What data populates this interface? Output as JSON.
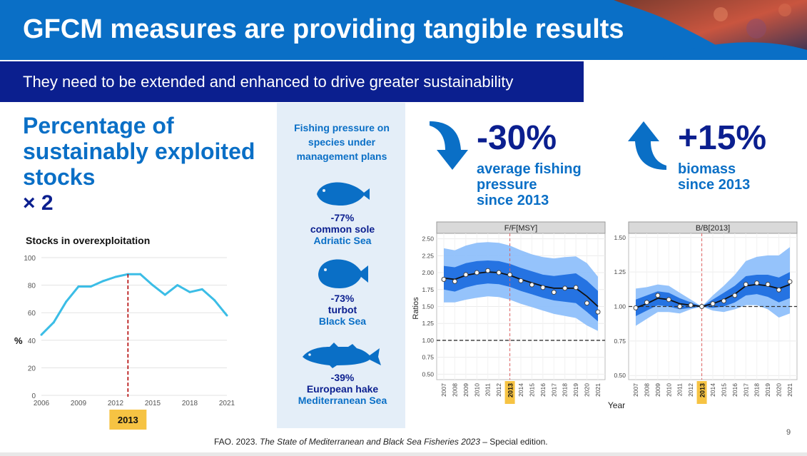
{
  "header": {
    "title": "GFCM measures are providing tangible results",
    "subtitle": "They need to be extended and enhanced to drive greater sustainability"
  },
  "left": {
    "heading": "Percentage of sustainably exploited stocks",
    "multiplier": "× 2"
  },
  "middle": {
    "heading": "Fishing pressure on species under management plans",
    "species": [
      {
        "pct": "-77%",
        "name": "common sole",
        "sea": "Adriatic Sea",
        "icon": "sole-fish-icon"
      },
      {
        "pct": "-73%",
        "name": "turbot",
        "sea": "Black Sea",
        "icon": "turbot-fish-icon"
      },
      {
        "pct": "-39%",
        "name": "European hake",
        "sea": "Mediterranean Sea",
        "icon": "hake-fish-icon"
      }
    ]
  },
  "stats": {
    "pressure_value": "-30%",
    "pressure_label_1": "average fishing",
    "pressure_label_2": "pressure",
    "pressure_label_3": "since 2013",
    "biomass_value": "+15%",
    "biomass_label_1": "biomass",
    "biomass_label_2": "since 2013"
  },
  "footer": {
    "ref_prefix": "FAO. 2023. ",
    "ref_title": "The State of Mediterranean and Black Sea Fisheries 2023",
    "ref_suffix": " – Special edition.",
    "page": "9"
  },
  "colors": {
    "brand_blue": "#0a6fc6",
    "navy": "#0b1f8f",
    "line_cyan": "#3bbde6",
    "band_dark": "#1f6fe0",
    "band_light": "#8fc0fb",
    "highlight_yellow": "#f6c343",
    "ref_line_red": "#c0392b"
  },
  "chart_data": [
    {
      "type": "line",
      "title": "Stocks in overexploitation",
      "ylabel": "%",
      "x": [
        2006,
        2007,
        2008,
        2009,
        2010,
        2011,
        2012,
        2013,
        2014,
        2015,
        2016,
        2017,
        2018,
        2019,
        2020,
        2021
      ],
      "values": [
        44,
        53,
        68,
        79,
        79,
        83,
        86,
        88,
        88,
        80,
        73,
        80,
        75,
        77,
        69,
        58
      ],
      "xticks": [
        2006,
        2009,
        2012,
        2015,
        2018,
        2021
      ],
      "yticks": [
        0,
        20,
        40,
        60,
        80,
        100
      ],
      "ylim": [
        0,
        100
      ],
      "xlim": [
        2006,
        2021
      ],
      "highlight_year": "2013",
      "grid": true
    },
    {
      "type": "line",
      "title": "F/F[MSY]",
      "ylabel": "Ratios",
      "xlabel": "Year",
      "x": [
        2007,
        2008,
        2009,
        2010,
        2011,
        2012,
        2013,
        2014,
        2015,
        2016,
        2017,
        2018,
        2019,
        2020,
        2021
      ],
      "points": [
        1.9,
        1.87,
        1.97,
        2.0,
        2.03,
        2.0,
        1.97,
        1.88,
        1.82,
        1.78,
        1.71,
        1.77,
        1.78,
        1.55,
        1.42
      ],
      "trend": [
        1.92,
        1.9,
        1.96,
        1.99,
        2.01,
        2.0,
        1.96,
        1.9,
        1.85,
        1.8,
        1.77,
        1.77,
        1.77,
        1.65,
        1.5
      ],
      "band_inner_low": [
        1.75,
        1.72,
        1.78,
        1.82,
        1.84,
        1.83,
        1.79,
        1.73,
        1.68,
        1.63,
        1.59,
        1.57,
        1.55,
        1.42,
        1.28
      ],
      "band_inner_high": [
        2.1,
        2.08,
        2.14,
        2.17,
        2.18,
        2.17,
        2.13,
        2.07,
        2.02,
        1.97,
        1.95,
        1.97,
        1.99,
        1.88,
        1.73
      ],
      "band_outer_low": [
        1.56,
        1.56,
        1.6,
        1.63,
        1.65,
        1.64,
        1.6,
        1.54,
        1.49,
        1.44,
        1.39,
        1.36,
        1.33,
        1.22,
        1.14
      ],
      "band_outer_high": [
        2.36,
        2.33,
        2.4,
        2.44,
        2.45,
        2.44,
        2.4,
        2.33,
        2.27,
        2.23,
        2.21,
        2.23,
        2.24,
        2.14,
        1.94
      ],
      "reference_line": 1.0,
      "ylim": [
        0.42,
        2.58
      ],
      "yticks": [
        0.5,
        0.75,
        1.0,
        1.25,
        1.5,
        1.75,
        2.0,
        2.25,
        2.5
      ],
      "highlight_year": "2013",
      "grid": true
    },
    {
      "type": "line",
      "title": "B/B[2013]",
      "xlabel": "Year",
      "x": [
        2007,
        2008,
        2009,
        2010,
        2011,
        2012,
        2013,
        2014,
        2015,
        2016,
        2017,
        2018,
        2019,
        2020,
        2021
      ],
      "points": [
        0.99,
        1.03,
        1.08,
        1.05,
        1.0,
        1.01,
        1.0,
        1.02,
        1.04,
        1.08,
        1.16,
        1.17,
        1.16,
        1.12,
        1.18
      ],
      "trend": [
        0.99,
        1.02,
        1.06,
        1.05,
        1.02,
        1.01,
        1.0,
        1.02,
        1.05,
        1.09,
        1.15,
        1.16,
        1.15,
        1.13,
        1.16
      ],
      "band_inner_low": [
        0.93,
        0.97,
        1.01,
        1.0,
        0.98,
        0.99,
        1.0,
        0.99,
        1.0,
        1.03,
        1.08,
        1.09,
        1.07,
        1.03,
        1.06
      ],
      "band_inner_high": [
        1.05,
        1.08,
        1.11,
        1.1,
        1.06,
        1.03,
        1.0,
        1.05,
        1.1,
        1.15,
        1.22,
        1.23,
        1.23,
        1.21,
        1.25
      ],
      "band_outer_low": [
        0.86,
        0.91,
        0.96,
        0.96,
        0.95,
        0.98,
        1.0,
        0.97,
        0.96,
        0.98,
        1.01,
        1.01,
        0.98,
        0.92,
        0.95
      ],
      "band_outer_high": [
        1.13,
        1.14,
        1.16,
        1.15,
        1.1,
        1.05,
        1.0,
        1.08,
        1.15,
        1.23,
        1.33,
        1.36,
        1.37,
        1.37,
        1.43
      ],
      "reference_line": 1.0,
      "ylim": [
        0.47,
        1.53
      ],
      "yticks": [
        0.5,
        0.75,
        1.0,
        1.25,
        1.5
      ],
      "highlight_year": "2013",
      "grid": true
    }
  ]
}
